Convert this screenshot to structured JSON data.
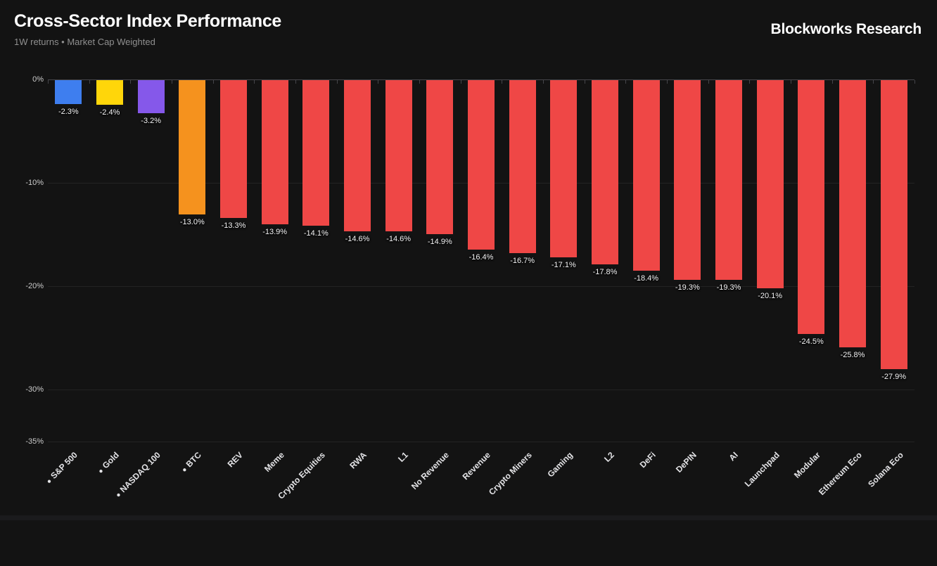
{
  "header": {
    "title": "Cross-Sector Index Performance",
    "subtitle": "1W returns • Market Cap Weighted",
    "brand": "Blockworks Research"
  },
  "colors": {
    "background": "#131313",
    "bar_default": "#EF4746",
    "benchmark_blue": "#3E7EEF",
    "benchmark_gold": "#FFD60A",
    "benchmark_purple": "#8558EA",
    "benchmark_orange": "#F5921E",
    "axis_line": "#45454a",
    "gridline": "rgba(255,255,255,0.07)"
  },
  "chart_data": {
    "type": "bar",
    "title": "Cross-Sector Index Performance",
    "subtitle": "1W returns • Market Cap Weighted",
    "xlabel": "",
    "ylabel": "",
    "ylim": [
      -35,
      0
    ],
    "yticks": [
      0,
      -10,
      -20,
      -30,
      -35
    ],
    "ytick_labels": [
      "0%",
      "-10%",
      "-20%",
      "-30%",
      "-35%"
    ],
    "grid": true,
    "legend": false,
    "marker_glyph": "●",
    "categories": [
      "S&P 500",
      "Gold",
      "NASDAQ 100",
      "BTC",
      "REV",
      "Meme",
      "Crypto Equities",
      "RWA",
      "L1",
      "No Revenue",
      "Revenue",
      "Crypto Miners",
      "Gaming",
      "L2",
      "DeFi",
      "DePIN",
      "AI",
      "Launchpad",
      "Modular",
      "Ethereum Eco",
      "Solana Eco"
    ],
    "values": [
      -2.3,
      -2.4,
      -3.2,
      -13.0,
      -13.3,
      -13.9,
      -14.1,
      -14.6,
      -14.6,
      -14.9,
      -16.4,
      -16.7,
      -17.1,
      -17.8,
      -18.4,
      -19.3,
      -19.3,
      -20.1,
      -24.5,
      -25.8,
      -27.9
    ],
    "value_labels": [
      "-2.3%",
      "-2.4%",
      "-3.2%",
      "-13.0%",
      "-13.3%",
      "-13.9%",
      "-14.1%",
      "-14.6%",
      "-14.6%",
      "-14.9%",
      "-16.4%",
      "-16.7%",
      "-17.1%",
      "-17.8%",
      "-18.4%",
      "-19.3%",
      "-19.3%",
      "-20.1%",
      "-24.5%",
      "-25.8%",
      "-27.9%"
    ],
    "bar_colors": [
      "#3E7EEF",
      "#FFD60A",
      "#8558EA",
      "#F5921E",
      "#EF4746",
      "#EF4746",
      "#EF4746",
      "#EF4746",
      "#EF4746",
      "#EF4746",
      "#EF4746",
      "#EF4746",
      "#EF4746",
      "#EF4746",
      "#EF4746",
      "#EF4746",
      "#EF4746",
      "#EF4746",
      "#EF4746",
      "#EF4746",
      "#EF4746"
    ],
    "benchmark_bullet": [
      true,
      true,
      true,
      true,
      false,
      false,
      false,
      false,
      false,
      false,
      false,
      false,
      false,
      false,
      false,
      false,
      false,
      false,
      false,
      false,
      false
    ]
  }
}
